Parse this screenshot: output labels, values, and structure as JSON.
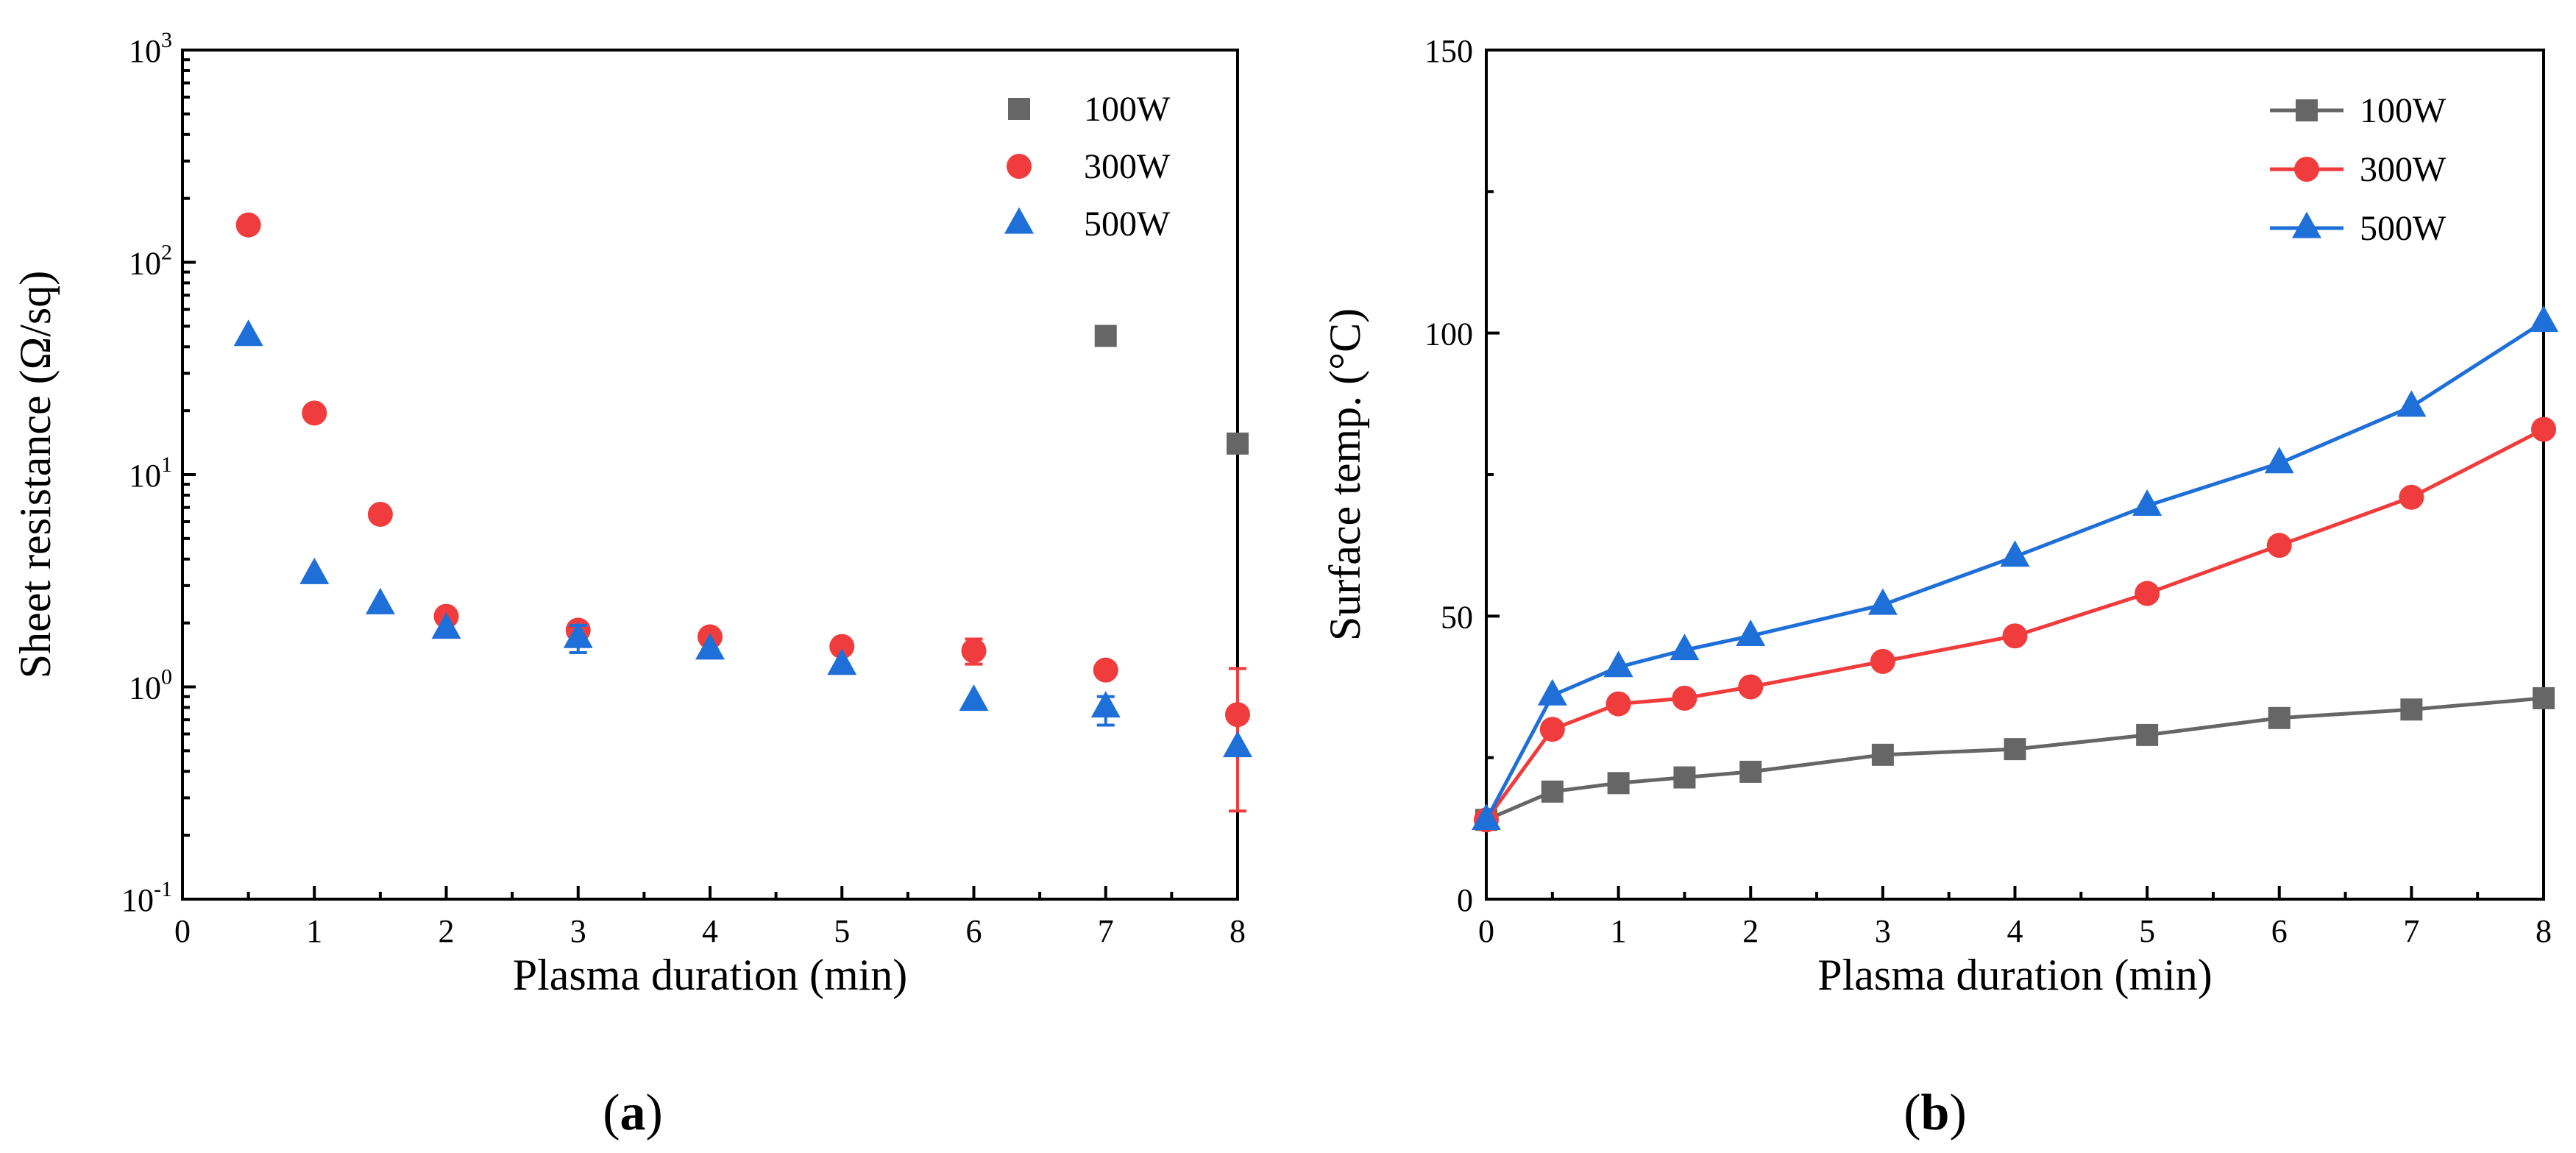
{
  "chart_data": [
    {
      "panel": "a",
      "type": "scatter",
      "xlabel": "Plasma duration (min)",
      "ylabel": "Sheet resistance (Ω/sq)",
      "yscale": "log",
      "xlim": [
        0,
        8
      ],
      "ylim": [
        0.1,
        1000
      ],
      "xticks": [
        0,
        1,
        2,
        3,
        4,
        5,
        6,
        7,
        8
      ],
      "yticks": [
        {
          "value": 0.1,
          "base": "10",
          "exp": "-1"
        },
        {
          "value": 1,
          "base": "10",
          "exp": "0"
        },
        {
          "value": 10,
          "base": "10",
          "exp": "1"
        },
        {
          "value": 100,
          "base": "10",
          "exp": "2"
        },
        {
          "value": 1000,
          "base": "10",
          "exp": "3"
        }
      ],
      "legend_position": "top-right",
      "series": [
        {
          "name": "100W",
          "marker": "square",
          "color": "#666666",
          "x": [
            7,
            8
          ],
          "y": [
            45,
            14
          ],
          "err": [
            null,
            null
          ]
        },
        {
          "name": "300W",
          "marker": "circle",
          "color": "#f03c3c",
          "x": [
            0.5,
            1,
            1.5,
            2,
            3,
            4,
            5,
            6,
            7,
            8
          ],
          "y": [
            150,
            19.5,
            6.5,
            2.15,
            1.85,
            1.72,
            1.55,
            1.48,
            1.2,
            0.74
          ],
          "err": [
            null,
            null,
            null,
            null,
            null,
            null,
            null,
            [
              1.28,
              1.68
            ],
            null,
            [
              0.26,
              1.22
            ]
          ]
        },
        {
          "name": "500W",
          "marker": "triangle",
          "color": "#1f6fd8",
          "x": [
            0.5,
            1,
            1.5,
            2,
            3,
            4,
            5,
            6,
            7,
            8
          ],
          "y": [
            45,
            3.4,
            2.45,
            1.88,
            1.7,
            1.5,
            1.27,
            0.86,
            0.8,
            0.52
          ],
          "err": [
            null,
            null,
            null,
            null,
            [
              1.45,
              1.95
            ],
            null,
            null,
            null,
            [
              0.66,
              0.9
            ],
            null
          ]
        }
      ],
      "panel_label": "a"
    },
    {
      "panel": "b",
      "type": "line",
      "xlabel": "Plasma duration (min)",
      "ylabel": "Surface temp. (°C)",
      "xlim": [
        0,
        8
      ],
      "ylim": [
        0,
        150
      ],
      "xticks": [
        0,
        1,
        2,
        3,
        4,
        5,
        6,
        7,
        8
      ],
      "yticks": [
        0,
        50,
        100,
        150
      ],
      "legend_position": "top-right",
      "x": [
        0,
        0.5,
        1,
        1.5,
        2,
        3,
        4,
        5,
        6,
        7,
        8
      ],
      "series": [
        {
          "name": "100W",
          "marker": "square",
          "color": "#666666",
          "values": [
            14,
            19,
            20.5,
            21.5,
            22.5,
            25.5,
            26.5,
            29,
            32,
            33.5,
            35.5
          ]
        },
        {
          "name": "300W",
          "marker": "circle",
          "color": "#f03c3c",
          "values": [
            14,
            30,
            34.5,
            35.5,
            37.5,
            42,
            46.5,
            54,
            62.5,
            71,
            83
          ]
        },
        {
          "name": "500W",
          "marker": "triangle",
          "color": "#1f6fd8",
          "values": [
            14,
            36,
            41,
            44,
            46.5,
            52,
            60.5,
            69.5,
            77,
            87,
            102
          ]
        }
      ],
      "panel_label": "b"
    }
  ],
  "labels": {
    "a_open": "(",
    "a_letter": "a",
    "a_close": ")",
    "b_open": "(",
    "b_letter": "b",
    "b_close": ")"
  }
}
